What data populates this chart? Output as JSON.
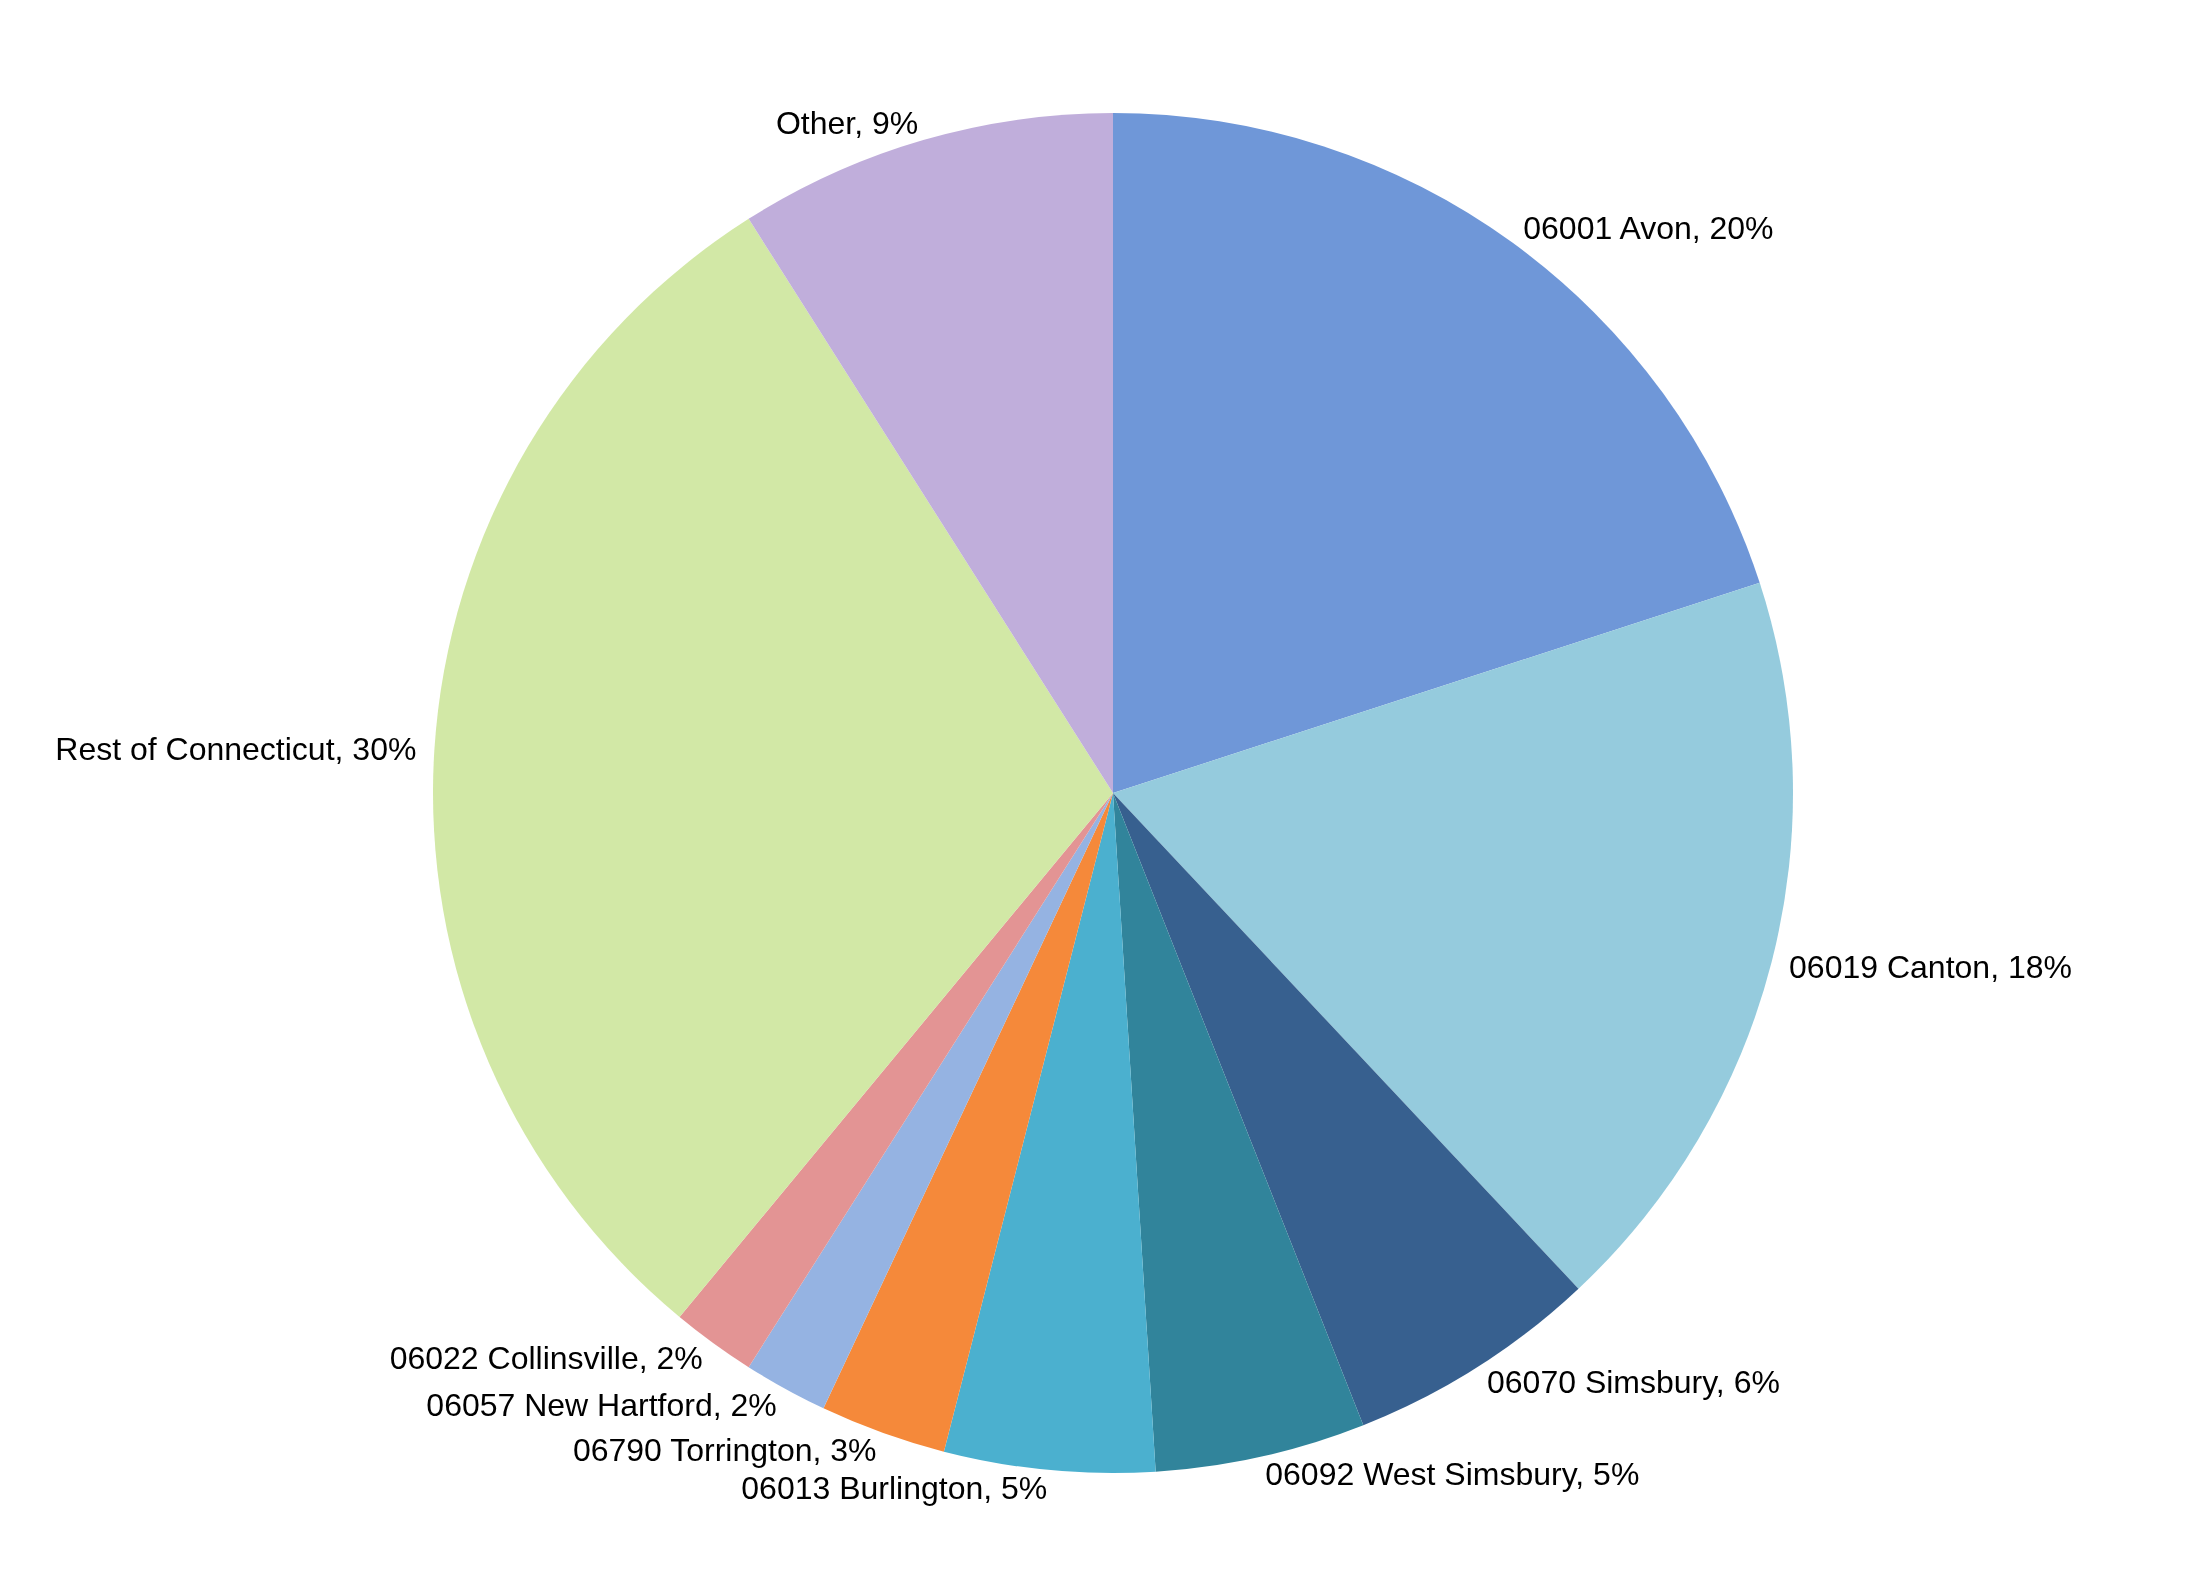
{
  "chart_data": {
    "type": "pie",
    "categories": [
      "06001 Avon",
      "06019 Canton",
      "06070 Simsbury",
      "06092 West Simsbury",
      "06013 Burlington",
      "06790 Torrington",
      "06057 New Hartford",
      "06022 Collinsville",
      "Rest of Connecticut",
      "Other"
    ],
    "values": [
      20,
      18,
      6,
      5,
      5,
      3,
      2,
      2,
      30,
      9
    ],
    "value_labels": [
      "20%",
      "18%",
      "6%",
      "5%",
      "5%",
      "3%",
      "2%",
      "2%",
      "30%",
      "9%"
    ],
    "colors": [
      "#6f97d8",
      "#95cbdd",
      "#37608f",
      "#31849b",
      "#4bb0cf",
      "#f5893a",
      "#95b3e2",
      "#e39494",
      "#d2e8a6",
      "#c0aedb"
    ]
  }
}
